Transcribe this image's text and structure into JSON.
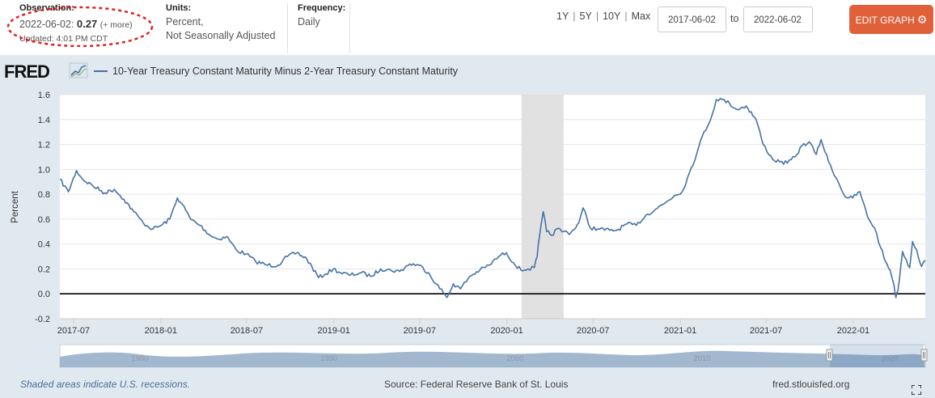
{
  "header": {
    "observation_label": "Observation:",
    "observation_date": "2022-06-02:",
    "observation_value": "0.27",
    "observation_more": "(+ more)",
    "updated": "Updated: 4:01 PM CDT",
    "units_label": "Units:",
    "units_line1": "Percent,",
    "units_line2": "Not Seasonally Adjusted",
    "frequency_label": "Frequency:",
    "frequency_value": "Daily"
  },
  "range_links": [
    "1Y",
    "5Y",
    "10Y",
    "Max"
  ],
  "date_range": {
    "from": "2017-06-02",
    "to_label": "to",
    "to": "2022-06-02"
  },
  "edit_graph_label": "EDIT GRAPH",
  "logo_text": "FRED",
  "legend_label": "10-Year Treasury Constant Maturity Minus 2-Year Treasury Constant Maturity",
  "colors": {
    "series": "#4572a7",
    "recession": "#e1e1e1",
    "accent": "#e0603a",
    "background": "#e1e9f0",
    "annotation": "#e02020"
  },
  "chart_data": {
    "type": "line",
    "title": "10-Year Treasury Constant Maturity Minus 2-Year Treasury Constant Maturity",
    "xlabel": "",
    "ylabel": "Percent",
    "ylim": [
      -0.2,
      1.6
    ],
    "yticks": [
      -0.2,
      0.0,
      0.2,
      0.4,
      0.6,
      0.8,
      1.0,
      1.2,
      1.4,
      1.6
    ],
    "ytick_labels": [
      "-0.2",
      "0.0",
      "0.2",
      "0.4",
      "0.6",
      "0.8",
      "1.0",
      "1.2",
      "1.4",
      "1.6"
    ],
    "xlim": [
      "2017-06-02",
      "2022-06-02"
    ],
    "xticks": [
      "2017-07",
      "2018-01",
      "2018-07",
      "2019-01",
      "2019-07",
      "2020-01",
      "2020-07",
      "2021-01",
      "2021-07",
      "2022-01"
    ],
    "recession": {
      "start": "2020-02-01",
      "end": "2020-04-30"
    },
    "zero_line": 0.0,
    "series": [
      {
        "name": "10-Year Treasury Constant Maturity Minus 2-Year Treasury Constant Maturity",
        "x": [
          "2017-06-02",
          "2017-06-20",
          "2017-07-07",
          "2017-07-20",
          "2017-08-10",
          "2017-09-05",
          "2017-09-25",
          "2017-10-15",
          "2017-11-05",
          "2017-11-25",
          "2017-12-15",
          "2018-01-02",
          "2018-01-20",
          "2018-02-05",
          "2018-02-15",
          "2018-03-05",
          "2018-03-25",
          "2018-04-15",
          "2018-05-01",
          "2018-05-20",
          "2018-06-10",
          "2018-06-30",
          "2018-07-20",
          "2018-08-15",
          "2018-09-05",
          "2018-09-25",
          "2018-10-15",
          "2018-11-05",
          "2018-11-30",
          "2018-12-15",
          "2018-12-31",
          "2019-01-15",
          "2019-02-05",
          "2019-02-28",
          "2019-03-20",
          "2019-04-10",
          "2019-05-01",
          "2019-05-20",
          "2019-06-10",
          "2019-06-30",
          "2019-07-20",
          "2019-08-05",
          "2019-08-20",
          "2019-08-28",
          "2019-09-10",
          "2019-09-25",
          "2019-10-15",
          "2019-11-05",
          "2019-11-25",
          "2019-12-15",
          "2019-12-31",
          "2020-01-15",
          "2020-01-31",
          "2020-02-15",
          "2020-02-28",
          "2020-03-05",
          "2020-03-10",
          "2020-03-18",
          "2020-03-25",
          "2020-04-05",
          "2020-04-15",
          "2020-04-30",
          "2020-05-15",
          "2020-06-01",
          "2020-06-10",
          "2020-06-25",
          "2020-07-15",
          "2020-08-05",
          "2020-08-20",
          "2020-09-10",
          "2020-09-30",
          "2020-10-20",
          "2020-11-10",
          "2020-11-30",
          "2020-12-20",
          "2021-01-05",
          "2021-01-20",
          "2021-02-05",
          "2021-02-20",
          "2021-03-05",
          "2021-03-18",
          "2021-03-31",
          "2021-04-15",
          "2021-05-01",
          "2021-05-20",
          "2021-06-10",
          "2021-06-25",
          "2021-07-15",
          "2021-07-30",
          "2021-08-15",
          "2021-08-31",
          "2021-09-15",
          "2021-09-30",
          "2021-10-15",
          "2021-10-25",
          "2021-11-10",
          "2021-11-30",
          "2021-12-15",
          "2021-12-31",
          "2022-01-15",
          "2022-01-31",
          "2022-02-15",
          "2022-02-28",
          "2022-03-10",
          "2022-03-20",
          "2022-03-28",
          "2022-04-01",
          "2022-04-05",
          "2022-04-15",
          "2022-04-30",
          "2022-05-06",
          "2022-05-15",
          "2022-05-25",
          "2022-06-02"
        ],
        "values": [
          0.92,
          0.82,
          0.99,
          0.92,
          0.87,
          0.81,
          0.84,
          0.76,
          0.66,
          0.57,
          0.52,
          0.55,
          0.6,
          0.77,
          0.72,
          0.6,
          0.55,
          0.47,
          0.44,
          0.46,
          0.35,
          0.32,
          0.26,
          0.23,
          0.23,
          0.3,
          0.33,
          0.28,
          0.13,
          0.16,
          0.2,
          0.17,
          0.15,
          0.17,
          0.14,
          0.2,
          0.19,
          0.18,
          0.24,
          0.23,
          0.17,
          0.08,
          0.01,
          -0.03,
          0.08,
          0.04,
          0.14,
          0.19,
          0.23,
          0.3,
          0.33,
          0.25,
          0.19,
          0.2,
          0.21,
          0.3,
          0.46,
          0.66,
          0.5,
          0.47,
          0.52,
          0.5,
          0.49,
          0.57,
          0.69,
          0.53,
          0.52,
          0.51,
          0.51,
          0.56,
          0.55,
          0.63,
          0.68,
          0.73,
          0.79,
          0.82,
          0.97,
          1.13,
          1.3,
          1.39,
          1.56,
          1.56,
          1.53,
          1.48,
          1.51,
          1.4,
          1.2,
          1.08,
          1.06,
          1.05,
          1.1,
          1.19,
          1.22,
          1.12,
          1.24,
          1.06,
          0.9,
          0.78,
          0.77,
          0.82,
          0.62,
          0.53,
          0.37,
          0.26,
          0.19,
          0.07,
          -0.03,
          0.02,
          0.34,
          0.21,
          0.42,
          0.35,
          0.22,
          0.27
        ]
      }
    ],
    "navigator": {
      "labels": [
        "1980",
        "1990",
        "2000",
        "2010",
        "2020"
      ]
    }
  },
  "footer": {
    "recession_note": "Shaded areas indicate U.S. recessions.",
    "source": "Source: Federal Reserve Bank of St. Louis",
    "site": "fred.stlouisfed.org"
  }
}
